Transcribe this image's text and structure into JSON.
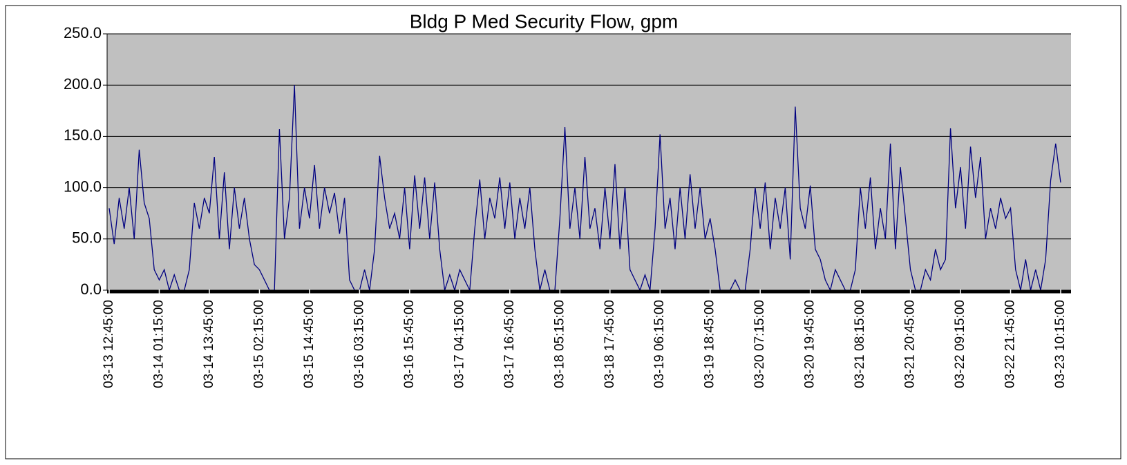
{
  "chart_data": {
    "type": "line",
    "title": "Bldg P Med Security Flow, gpm",
    "categories": [
      "03-13 12:45:00",
      null,
      null,
      null,
      null,
      null,
      null,
      null,
      null,
      null,
      "03-14 01:15:00",
      null,
      null,
      null,
      null,
      null,
      null,
      null,
      null,
      null,
      "03-14 13:45:00",
      null,
      null,
      null,
      null,
      null,
      null,
      null,
      null,
      null,
      "03-15 02:15:00",
      null,
      null,
      null,
      null,
      null,
      null,
      null,
      null,
      null,
      "03-15 14:45:00",
      null,
      null,
      null,
      null,
      null,
      null,
      null,
      null,
      null,
      "03-16 03:15:00",
      null,
      null,
      null,
      null,
      null,
      null,
      null,
      null,
      null,
      "03-16 15:45:00",
      null,
      null,
      null,
      null,
      null,
      null,
      null,
      null,
      null,
      "03-17 04:15:00",
      null,
      null,
      null,
      null,
      null,
      null,
      null,
      null,
      null,
      "03-17 16:45:00",
      null,
      null,
      null,
      null,
      null,
      null,
      null,
      null,
      null,
      "03-18 05:15:00",
      null,
      null,
      null,
      null,
      null,
      null,
      null,
      null,
      null,
      "03-18 17:45:00",
      null,
      null,
      null,
      null,
      null,
      null,
      null,
      null,
      null,
      "03-19 06:15:00",
      null,
      null,
      null,
      null,
      null,
      null,
      null,
      null,
      null,
      "03-19 18:45:00",
      null,
      null,
      null,
      null,
      null,
      null,
      null,
      null,
      null,
      "03-20 07:15:00",
      null,
      null,
      null,
      null,
      null,
      null,
      null,
      null,
      null,
      "03-20 19:45:00",
      null,
      null,
      null,
      null,
      null,
      null,
      null,
      null,
      null,
      "03-21 08:15:00",
      null,
      null,
      null,
      null,
      null,
      null,
      null,
      null,
      null,
      "03-21 20:45:00",
      null,
      null,
      null,
      null,
      null,
      null,
      null,
      null,
      null,
      "03-22 09:15:00",
      null,
      null,
      null,
      null,
      null,
      null,
      null,
      null,
      null,
      "03-22 21:45:00",
      null,
      null,
      null,
      null,
      null,
      null,
      null,
      null,
      null,
      "03-23 10:15:00"
    ],
    "values": [
      80,
      45,
      90,
      60,
      100,
      50,
      137,
      85,
      70,
      20,
      10,
      20,
      0,
      15,
      0,
      0,
      20,
      85,
      60,
      90,
      75,
      130,
      50,
      115,
      40,
      100,
      60,
      90,
      50,
      25,
      20,
      10,
      0,
      0,
      157,
      50,
      90,
      200,
      60,
      100,
      70,
      122,
      60,
      100,
      75,
      95,
      55,
      90,
      10,
      0,
      0,
      20,
      0,
      40,
      131,
      90,
      60,
      75,
      50,
      100,
      40,
      112,
      60,
      110,
      50,
      105,
      40,
      0,
      15,
      0,
      20,
      10,
      0,
      60,
      108,
      50,
      90,
      70,
      110,
      60,
      105,
      50,
      90,
      60,
      100,
      40,
      0,
      20,
      0,
      0,
      70,
      159,
      60,
      100,
      50,
      130,
      60,
      80,
      40,
      100,
      50,
      123,
      40,
      100,
      20,
      10,
      0,
      15,
      0,
      60,
      152,
      60,
      90,
      40,
      100,
      50,
      113,
      60,
      100,
      50,
      70,
      40,
      0,
      0,
      0,
      10,
      0,
      0,
      40,
      100,
      60,
      105,
      40,
      90,
      60,
      100,
      30,
      179,
      80,
      60,
      102,
      40,
      30,
      10,
      0,
      20,
      10,
      0,
      0,
      20,
      100,
      60,
      110,
      40,
      80,
      50,
      143,
      40,
      120,
      70,
      20,
      0,
      0,
      20,
      10,
      40,
      20,
      30,
      158,
      80,
      120,
      60,
      140,
      90,
      130,
      50,
      80,
      60,
      90,
      70,
      80,
      20,
      0,
      30,
      0,
      20,
      0,
      30,
      107,
      143,
      105
    ],
    "color": "#000080",
    "ylim": [
      0,
      250
    ],
    "yticks": [
      {
        "value": 0,
        "label": "0.0"
      },
      {
        "value": 50,
        "label": "50.0"
      },
      {
        "value": 100,
        "label": "100.0"
      },
      {
        "value": 150,
        "label": "150.0"
      },
      {
        "value": 200,
        "label": "200.0"
      },
      {
        "value": 250,
        "label": "250.0"
      }
    ],
    "grid": true
  }
}
